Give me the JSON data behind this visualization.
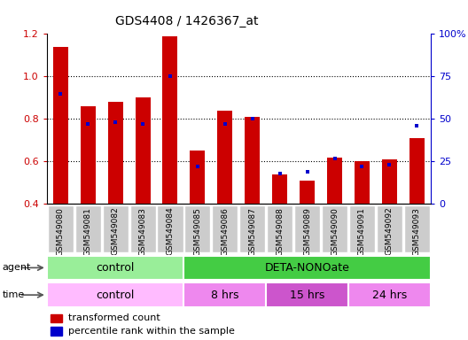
{
  "title": "GDS4408 / 1426367_at",
  "samples": [
    "GSM549080",
    "GSM549081",
    "GSM549082",
    "GSM549083",
    "GSM549084",
    "GSM549085",
    "GSM549086",
    "GSM549087",
    "GSM549088",
    "GSM549089",
    "GSM549090",
    "GSM549091",
    "GSM549092",
    "GSM549093"
  ],
  "transformed_count": [
    1.14,
    0.86,
    0.88,
    0.9,
    1.19,
    0.65,
    0.84,
    0.81,
    0.54,
    0.51,
    0.62,
    0.6,
    0.61,
    0.71
  ],
  "percentile_rank": [
    65,
    47,
    48,
    47,
    75,
    22,
    47,
    50,
    18,
    19,
    27,
    22,
    23,
    46
  ],
  "ylim_left": [
    0.4,
    1.2
  ],
  "ylim_right": [
    0,
    100
  ],
  "yticks_left": [
    0.4,
    0.6,
    0.8,
    1.0,
    1.2
  ],
  "yticks_right": [
    0,
    25,
    50,
    75,
    100
  ],
  "bar_color": "#cc0000",
  "dot_color": "#0000cc",
  "agent_groups": [
    {
      "label": "control",
      "start": 0,
      "end": 5,
      "color": "#99ee99"
    },
    {
      "label": "DETA-NONOate",
      "start": 5,
      "end": 14,
      "color": "#44cc44"
    }
  ],
  "time_groups": [
    {
      "label": "control",
      "start": 0,
      "end": 5,
      "color": "#ffbbff"
    },
    {
      "label": "8 hrs",
      "start": 5,
      "end": 8,
      "color": "#ee88ee"
    },
    {
      "label": "15 hrs",
      "start": 8,
      "end": 11,
      "color": "#cc55cc"
    },
    {
      "label": "24 hrs",
      "start": 11,
      "end": 14,
      "color": "#ee88ee"
    }
  ],
  "legend_bar_label": "transformed count",
  "legend_dot_label": "percentile rank within the sample",
  "tick_label_color": "#cc0000",
  "right_axis_color": "#0000cc",
  "bar_width": 0.55,
  "baseline": 0.4,
  "sample_box_color": "#cccccc",
  "grid_linestyle": ":",
  "grid_linewidth": 0.8
}
